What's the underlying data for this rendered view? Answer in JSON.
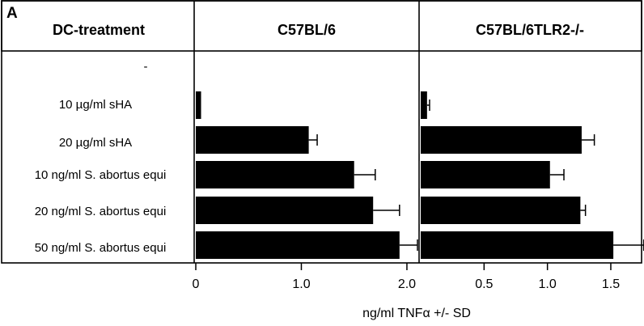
{
  "figure": {
    "panel_letter": "A",
    "row_header": "DC-treatment"
  },
  "chart_data": [
    {
      "type": "bar",
      "orientation": "horizontal",
      "title": "C57BL/6",
      "categories": [
        "-",
        "10 µg/ml sHA",
        "20 µg/ml sHA",
        "10 ng/ml S. abortus equi",
        "20 ng/ml S. abortus equi",
        "50 ng/ml S. abortus equi"
      ],
      "values": [
        0,
        0.05,
        1.07,
        1.5,
        1.68,
        1.93
      ],
      "errors": [
        0,
        0,
        0.08,
        0.2,
        0.25,
        0.17
      ],
      "xlim": [
        0,
        2.1
      ],
      "xticks": [
        0,
        1.0,
        2.0
      ],
      "xtick_labels": [
        "0",
        "1.0",
        "2.0"
      ],
      "xlabel": "ng/ml TNFα +/- SD",
      "grid": false
    },
    {
      "type": "bar",
      "orientation": "horizontal",
      "title": "C57BL/6TLR2-/-",
      "categories": [
        "-",
        "10 µg/ml sHA",
        "20 µg/ml sHA",
        "10 ng/ml S. abortus equi",
        "20 ng/ml S. abortus equi",
        "50 ng/ml S. abortus equi"
      ],
      "values": [
        0,
        0.05,
        1.27,
        1.02,
        1.26,
        1.52
      ],
      "errors": [
        0,
        0.02,
        0.1,
        0.11,
        0.04,
        0.24
      ],
      "xlim": [
        0,
        1.73
      ],
      "xticks": [
        0.5,
        1.0,
        1.5
      ],
      "xtick_labels": [
        "0.5",
        "1.0",
        "1.5"
      ],
      "xlabel": "ng/ml TNFα +/- SD",
      "grid": false
    }
  ]
}
